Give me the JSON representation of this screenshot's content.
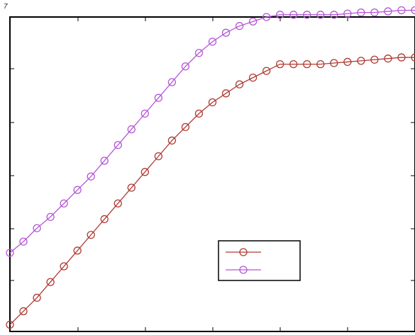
{
  "corner_label": "7",
  "chart_data": {
    "type": "line",
    "title": "",
    "xlabel": "",
    "ylabel": "",
    "xlim": [
      0,
      30
    ],
    "ylim": [
      0,
      1.4
    ],
    "grid": false,
    "legend_placement": "lower-center",
    "x": [
      0,
      1,
      2,
      3,
      4,
      5,
      6,
      7,
      8,
      9,
      10,
      11,
      12,
      13,
      14,
      15,
      16,
      17,
      18,
      19,
      20,
      21,
      22,
      23,
      24,
      25,
      26,
      27,
      28,
      29,
      30
    ],
    "series": [
      {
        "color": "#b03a32",
        "marker": "circle",
        "values": [
          0.03,
          0.09,
          0.15,
          0.22,
          0.29,
          0.36,
          0.43,
          0.5,
          0.57,
          0.64,
          0.71,
          0.78,
          0.85,
          0.91,
          0.97,
          1.02,
          1.06,
          1.1,
          1.13,
          1.16,
          1.19,
          1.19,
          1.19,
          1.19,
          1.195,
          1.2,
          1.205,
          1.21,
          1.215,
          1.22,
          1.22
        ]
      },
      {
        "color": "#b557d6",
        "marker": "circle",
        "values": [
          0.35,
          0.4,
          0.46,
          0.51,
          0.57,
          0.63,
          0.69,
          0.76,
          0.83,
          0.9,
          0.97,
          1.04,
          1.11,
          1.18,
          1.24,
          1.29,
          1.33,
          1.36,
          1.38,
          1.4,
          1.41,
          1.41,
          1.41,
          1.41,
          1.41,
          1.415,
          1.42,
          1.42,
          1.425,
          1.43,
          1.43
        ]
      }
    ]
  }
}
